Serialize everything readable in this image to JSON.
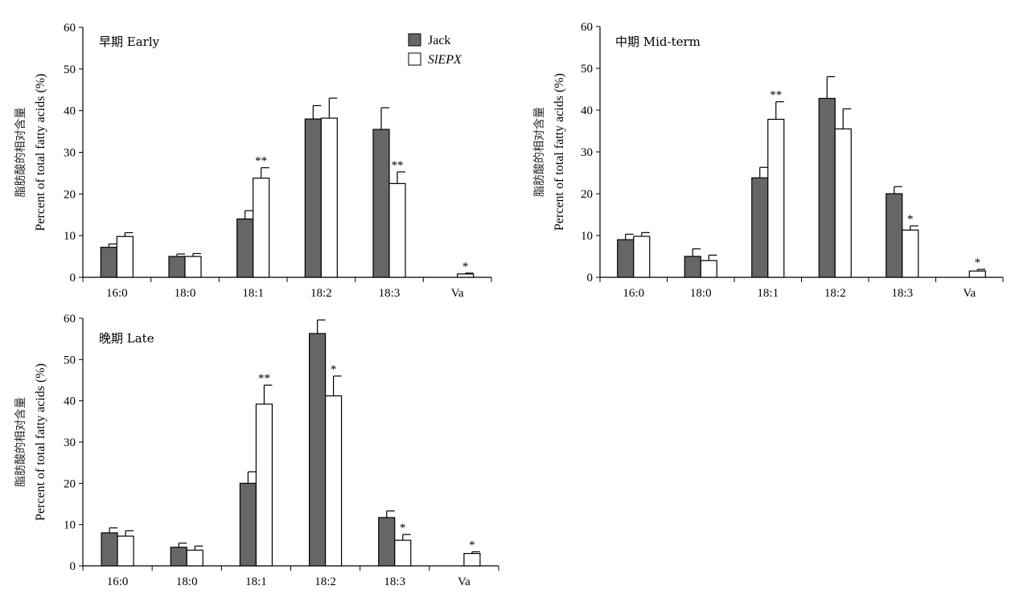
{
  "legend": {
    "series_a": "Jack",
    "series_b": "SlEPX"
  },
  "colors": {
    "jack_fill": "#666666",
    "slepx_fill": "#ffffff",
    "stroke": "#000000"
  },
  "chart_data": [
    {
      "type": "bar",
      "title": "早期 Early",
      "ylabel_zh": "脂肪酸的相对含量",
      "ylabel": "Percent of total fatty acids (%)",
      "xlabel": "",
      "categories": [
        "16:0",
        "18:0",
        "18:1",
        "18:2",
        "18:3",
        "Va"
      ],
      "ylim": [
        0,
        60
      ],
      "yticks": [
        0,
        10,
        20,
        30,
        40,
        50,
        60
      ],
      "series": [
        {
          "name": "Jack",
          "values": [
            7.2,
            5.0,
            14.0,
            38.0,
            35.5,
            0
          ],
          "errors": [
            0.8,
            0.6,
            2.0,
            3.2,
            5.2,
            0
          ]
        },
        {
          "name": "SlEPX",
          "values": [
            9.8,
            5.0,
            23.8,
            38.2,
            22.5,
            0.8
          ],
          "errors": [
            0.9,
            0.7,
            2.5,
            4.8,
            2.8,
            0.2
          ]
        }
      ],
      "significance": [
        {
          "category": "18:1",
          "series": "SlEPX",
          "mark": "**"
        },
        {
          "category": "18:3",
          "series": "SlEPX",
          "mark": "**"
        },
        {
          "category": "Va",
          "series": "SlEPX",
          "mark": "*"
        }
      ],
      "legend_position": "top-right",
      "grid": false
    },
    {
      "type": "bar",
      "title": "中期 Mid-term",
      "ylabel_zh": "脂肪酸的相对含量",
      "ylabel": "Percent of total fatty acids (%)",
      "xlabel": "",
      "categories": [
        "16:0",
        "18:0",
        "18:1",
        "18:2",
        "18:3",
        "Va"
      ],
      "ylim": [
        0,
        60
      ],
      "yticks": [
        0,
        10,
        20,
        30,
        40,
        50,
        60
      ],
      "series": [
        {
          "name": "Jack",
          "values": [
            9.0,
            5.0,
            23.8,
            42.8,
            20.0,
            0
          ],
          "errors": [
            1.3,
            1.8,
            2.5,
            5.2,
            1.7,
            0
          ]
        },
        {
          "name": "SlEPX",
          "values": [
            9.8,
            4.0,
            37.8,
            35.5,
            11.3,
            1.5
          ],
          "errors": [
            0.9,
            1.3,
            4.2,
            4.8,
            1.0,
            0.4
          ]
        }
      ],
      "significance": [
        {
          "category": "18:1",
          "series": "SlEPX",
          "mark": "**"
        },
        {
          "category": "18:3",
          "series": "SlEPX",
          "mark": "*"
        },
        {
          "category": "Va",
          "series": "SlEPX",
          "mark": "*"
        }
      ],
      "grid": false
    },
    {
      "type": "bar",
      "title": "晚期 Late",
      "ylabel_zh": "脂肪酸的相对含量",
      "ylabel": "Percent of total fatty acids (%)",
      "xlabel": "",
      "categories": [
        "16:0",
        "18:0",
        "18:1",
        "18:2",
        "18:3",
        "Va"
      ],
      "ylim": [
        0,
        60
      ],
      "yticks": [
        0,
        10,
        20,
        30,
        40,
        50,
        60
      ],
      "series": [
        {
          "name": "Jack",
          "values": [
            8.0,
            4.5,
            20.0,
            56.3,
            11.7,
            0
          ],
          "errors": [
            1.2,
            1.0,
            2.8,
            3.3,
            1.6,
            0
          ]
        },
        {
          "name": "SlEPX",
          "values": [
            7.2,
            3.8,
            39.2,
            41.2,
            6.2,
            3.0
          ],
          "errors": [
            1.3,
            1.0,
            4.6,
            4.8,
            1.4,
            0.4
          ]
        }
      ],
      "significance": [
        {
          "category": "18:1",
          "series": "SlEPX",
          "mark": "**"
        },
        {
          "category": "18:2",
          "series": "SlEPX",
          "mark": "*"
        },
        {
          "category": "18:3",
          "series": "SlEPX",
          "mark": "*"
        },
        {
          "category": "Va",
          "series": "SlEPX",
          "mark": "*"
        }
      ],
      "grid": false
    }
  ]
}
